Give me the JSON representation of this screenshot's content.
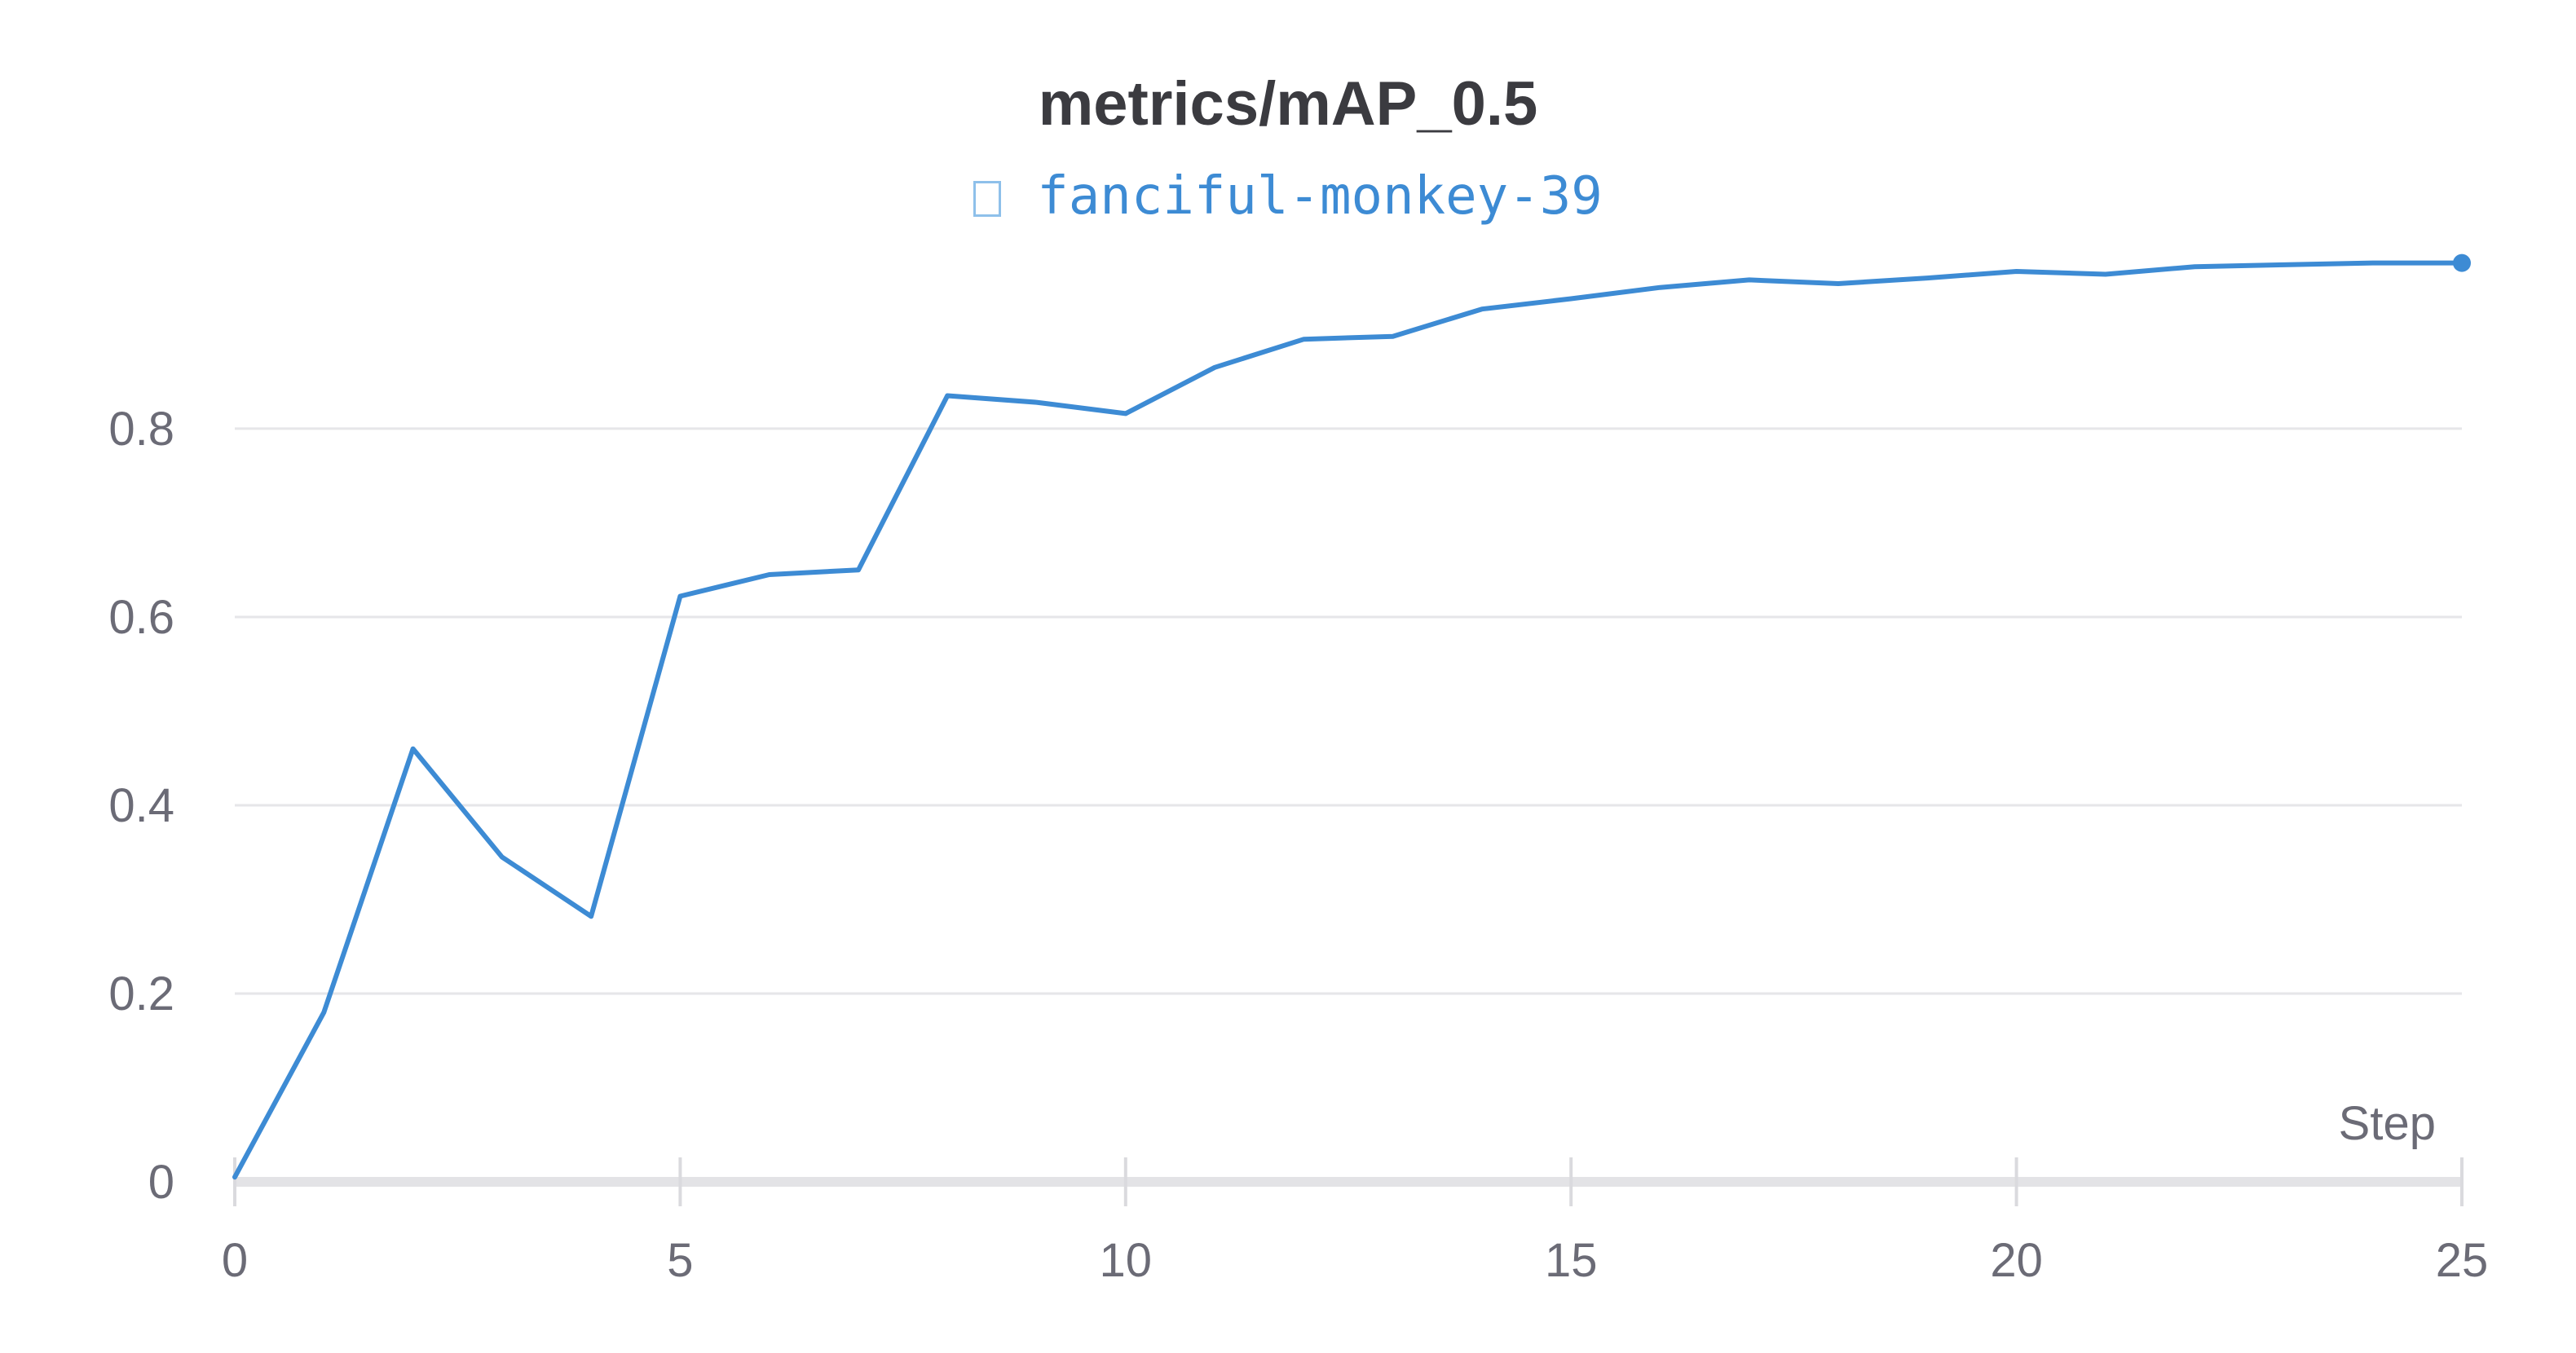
{
  "chart_data": {
    "type": "line",
    "title": "metrics/mAP_0.5",
    "xlabel": "Step",
    "ylabel": "",
    "xlim": [
      0,
      25
    ],
    "ylim": [
      0,
      0.98
    ],
    "grid": true,
    "legend_position": "top-center",
    "x_ticks": [
      0,
      5,
      10,
      15,
      20,
      25
    ],
    "y_ticks": [
      0,
      0.2,
      0.4,
      0.6,
      0.8
    ],
    "x_tick_labels": [
      "0",
      "5",
      "10",
      "15",
      "20",
      "25"
    ],
    "y_tick_labels": [
      "0",
      "0.2",
      "0.4",
      "0.6",
      "0.8"
    ],
    "series": [
      {
        "name": "fanciful-monkey-39",
        "color": "#3d8bd4",
        "x": [
          0,
          1,
          2,
          3,
          4,
          5,
          6,
          7,
          8,
          9,
          10,
          11,
          12,
          13,
          14,
          15,
          16,
          17,
          18,
          19,
          20,
          21,
          22,
          23,
          24,
          25
        ],
        "values": [
          0.005,
          0.18,
          0.46,
          0.345,
          0.282,
          0.622,
          0.645,
          0.65,
          0.835,
          0.828,
          0.816,
          0.865,
          0.895,
          0.898,
          0.927,
          0.938,
          0.95,
          0.958,
          0.954,
          0.96,
          0.967,
          0.964,
          0.972,
          0.974,
          0.976,
          0.976
        ]
      }
    ]
  },
  "legend_icon": "square-outline-icon"
}
